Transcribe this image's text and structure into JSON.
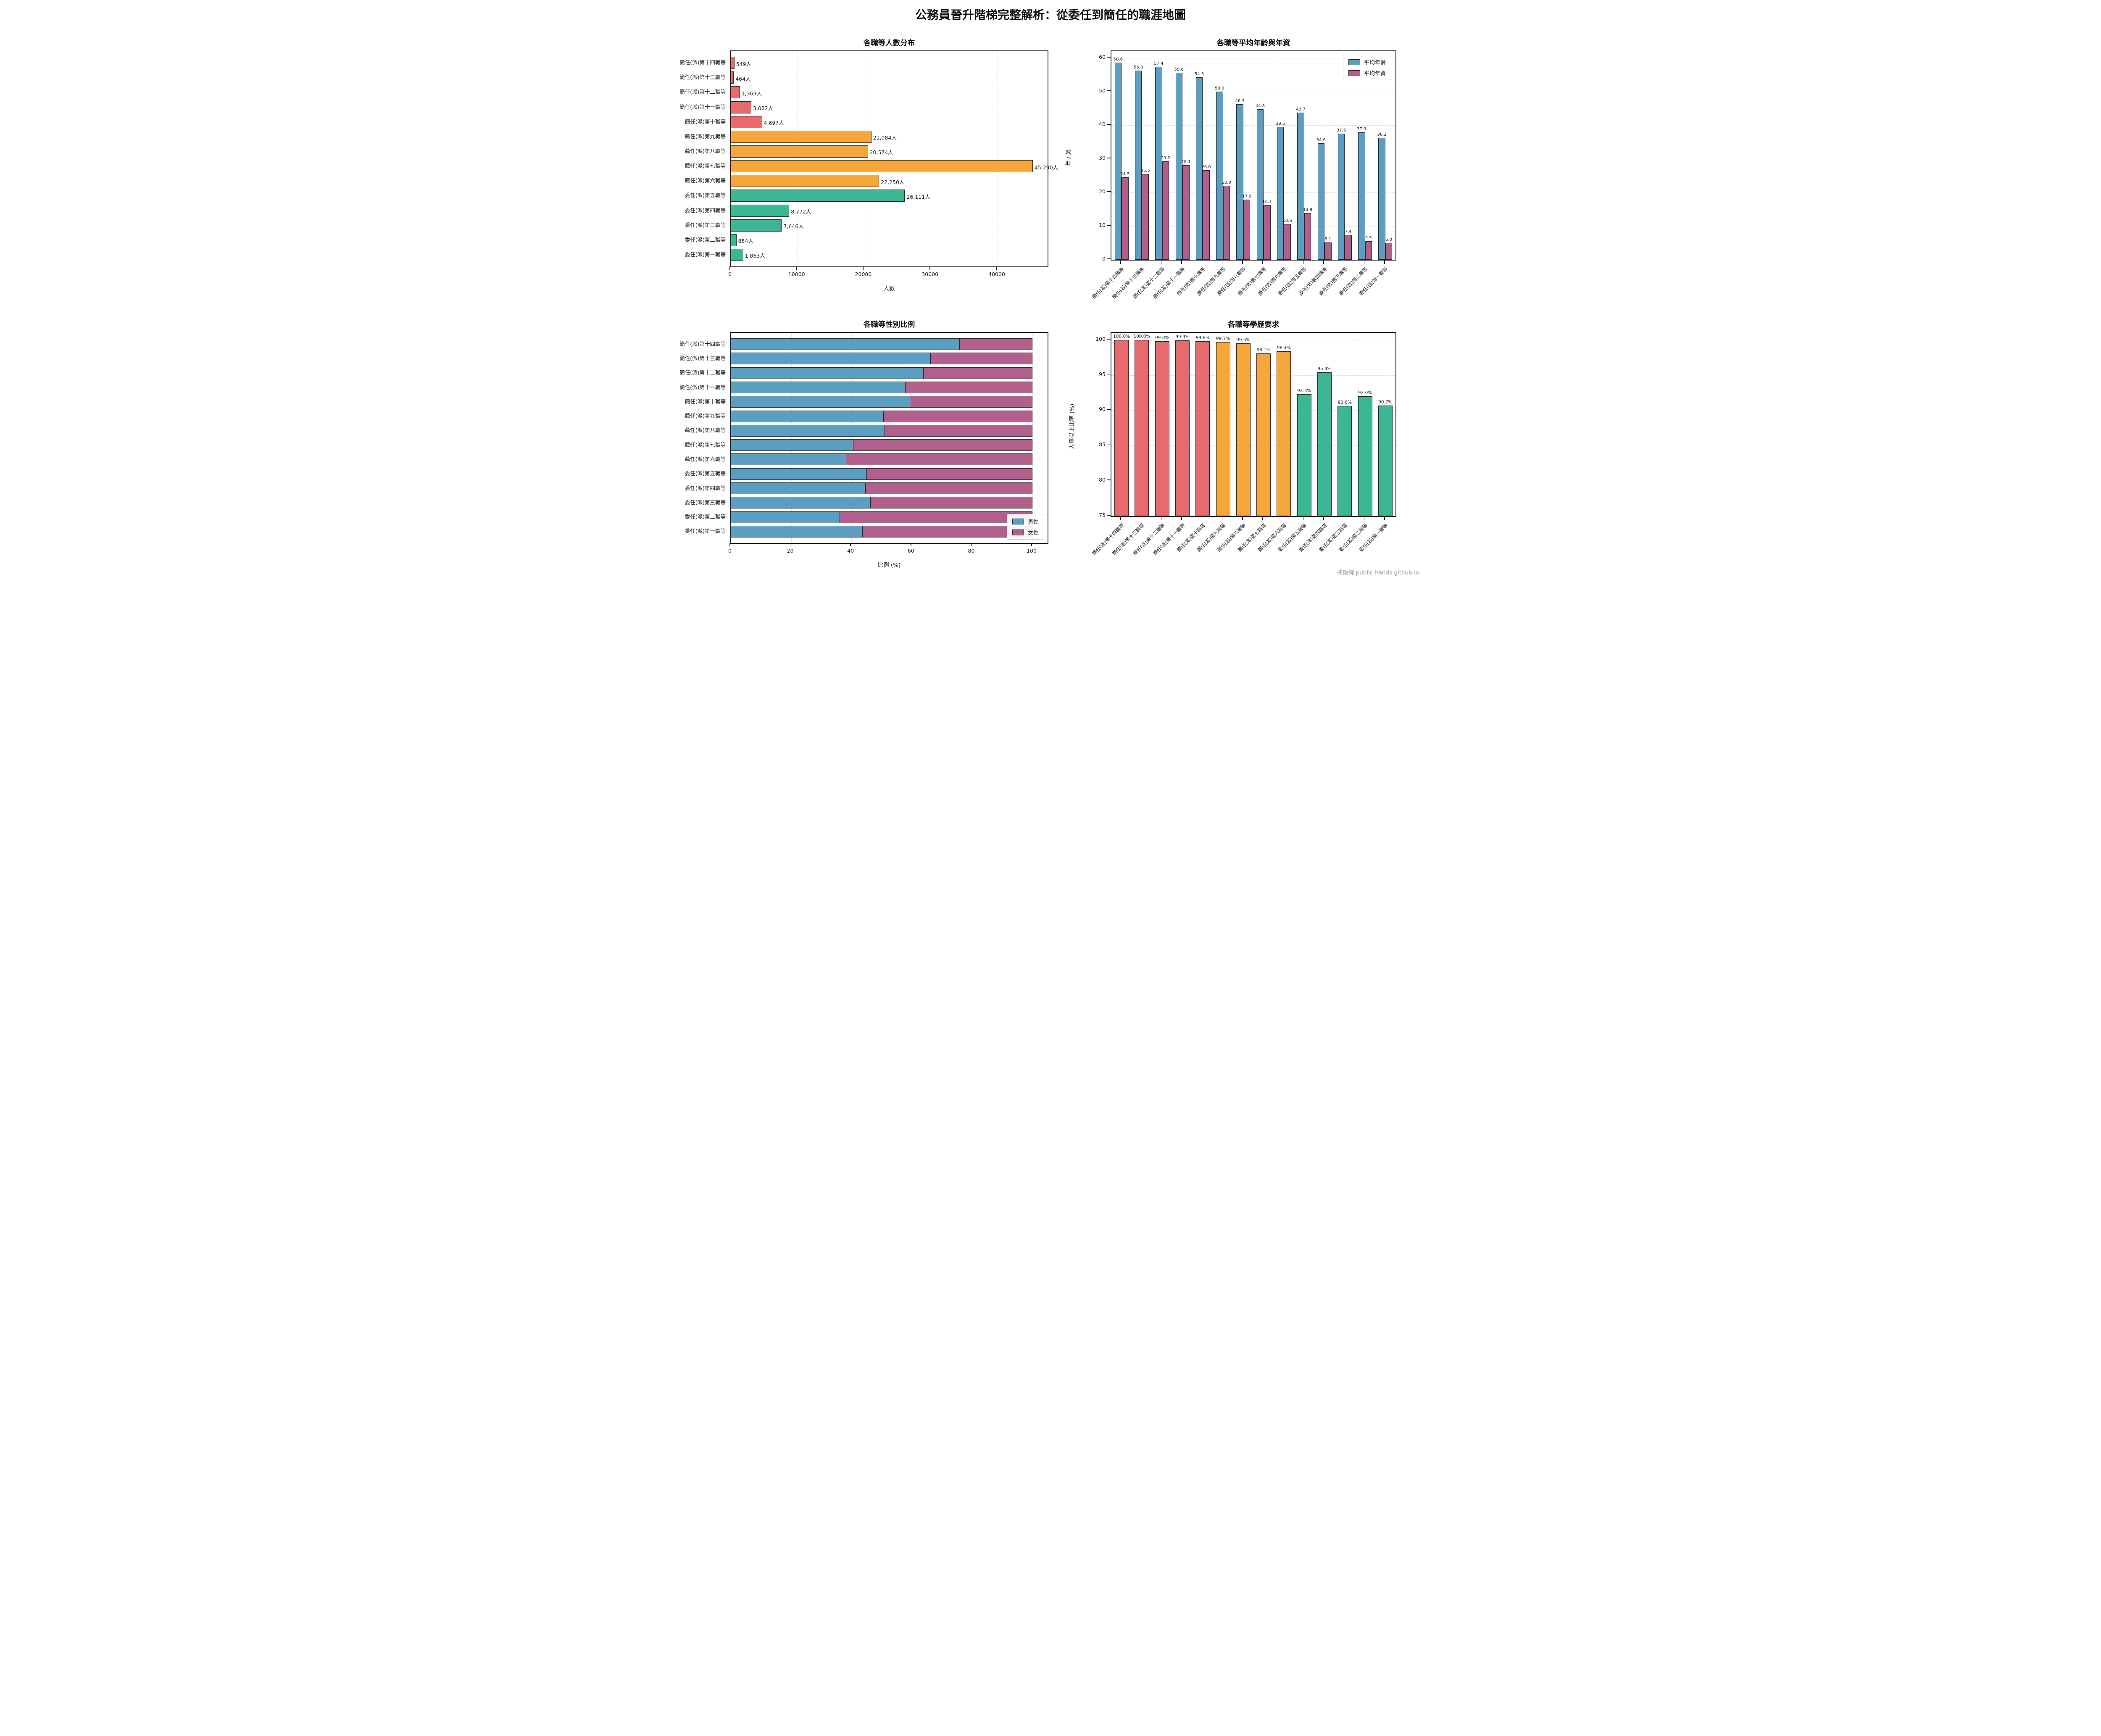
{
  "title": "公務員晉升階梯完整解析：從委任到簡任的職涯地圖",
  "watermark": "捧飯碗 public-hands.github.io",
  "palette": {
    "red": "#E76A6E",
    "orange": "#F5A73B",
    "green": "#3CB795",
    "blue": "#5B9EC1",
    "purple": "#B15F8D",
    "edge": "#262626",
    "grid": "#D8D8D8",
    "text": "#1A1A1A",
    "watermark_gray": "#9A9A9A"
  },
  "chart_data": [
    {
      "id": "count",
      "type": "bar",
      "orientation": "horizontal",
      "title": "各職等人數分布",
      "xlabel": "人數",
      "categories": [
        "簡任(派)第十四職等",
        "簡任(派)第十三職等",
        "簡任(派)第十二職等",
        "簡任(派)第十一職等",
        "簡任(派)第十職等",
        "薦任(派)第九職等",
        "薦任(派)第八職等",
        "薦任(派)第七職等",
        "薦任(派)第六職等",
        "委任(派)第五職等",
        "委任(派)第四職等",
        "委任(派)第三職等",
        "委任(派)第二職等",
        "委任(派)第一職等"
      ],
      "values": [
        549,
        464,
        1369,
        3082,
        4697,
        21084,
        20574,
        45290,
        22250,
        26111,
        8772,
        7646,
        854,
        1863
      ],
      "value_labels": [
        "549人",
        "464人",
        "1,369人",
        "3,082人",
        "4,697人",
        "21,084人",
        "20,574人",
        "45,290人",
        "22,250人",
        "26,111人",
        "8,772人",
        "7,646人",
        "854人",
        "1,863人"
      ],
      "bar_color_keys": [
        "red",
        "red",
        "red",
        "red",
        "red",
        "orange",
        "orange",
        "orange",
        "orange",
        "green",
        "green",
        "green",
        "green",
        "green"
      ],
      "xticks": [
        0,
        10000,
        20000,
        30000,
        40000
      ],
      "xlim": [
        0,
        47500
      ],
      "grid": true
    },
    {
      "id": "age_tenure",
      "type": "bar",
      "grouped": true,
      "title": "各職等平均年齡與年資",
      "ylabel": "年 / 歲",
      "categories": [
        "簡任(派)第十四職等",
        "簡任(派)第十三職等",
        "簡任(派)第十二職等",
        "簡任(派)第十一職等",
        "簡任(派)第十職等",
        "薦任(派)第九職等",
        "薦任(派)第八職等",
        "薦任(派)第七職等",
        "薦任(派)第六職等",
        "委任(派)第五職等",
        "委任(派)第四職等",
        "委任(派)第三職等",
        "委任(派)第二職等",
        "委任(派)第一職等"
      ],
      "series": [
        {
          "name": "平均年齡",
          "color_key": "blue",
          "values": [
            58.6,
            56.3,
            57.4,
            55.6,
            54.3,
            50.0,
            46.3,
            44.8,
            39.5,
            43.7,
            34.6,
            37.5,
            37.9,
            36.2
          ],
          "value_labels": [
            "58.6",
            "56.3",
            "57.4",
            "55.6",
            "54.3",
            "50.0",
            "46.3",
            "44.8",
            "39.5",
            "43.7",
            "34.6",
            "37.5",
            "37.9",
            "36.2"
          ]
        },
        {
          "name": "平均年資",
          "color_key": "purple",
          "values": [
            24.5,
            25.5,
            29.2,
            28.1,
            26.6,
            22.0,
            17.9,
            16.3,
            10.6,
            13.9,
            5.1,
            7.4,
            5.5,
            5.0
          ],
          "value_labels": [
            "24.5",
            "25.5",
            "29.2",
            "28.1",
            "26.6",
            "22.0",
            "17.9",
            "16.3",
            "10.6",
            "13.9",
            "5.1",
            "7.4",
            "5.5",
            "5.0"
          ]
        }
      ],
      "yticks": [
        0,
        10,
        20,
        30,
        40,
        50,
        60
      ],
      "ylim": [
        0,
        62
      ],
      "legend_position": "upper-right",
      "grid": true
    },
    {
      "id": "gender",
      "type": "stacked-bar",
      "orientation": "horizontal",
      "title": "各職等性別比例",
      "xlabel": "比例 (%)",
      "categories": [
        "簡任(派)第十四職等",
        "簡任(派)第十三職等",
        "簡任(派)第十二職等",
        "簡任(派)第十一職等",
        "簡任(派)第十職等",
        "薦任(派)第九職等",
        "薦任(派)第八職等",
        "薦任(派)第七職等",
        "薦任(派)第六職等",
        "委任(派)第五職等",
        "委任(派)第四職等",
        "委任(派)第三職等",
        "委任(派)第二職等",
        "委任(派)第一職等"
      ],
      "series": [
        {
          "name": "男性",
          "color_key": "blue",
          "values": [
            75.9,
            66.3,
            64.0,
            58.0,
            59.5,
            50.7,
            51.2,
            40.8,
            38.3,
            45.2,
            44.8,
            46.5,
            36.3,
            43.8
          ]
        },
        {
          "name": "女性",
          "color_key": "purple",
          "values": [
            24.1,
            33.7,
            36.0,
            42.0,
            40.5,
            49.3,
            48.8,
            59.2,
            61.7,
            54.8,
            55.2,
            53.5,
            63.7,
            56.2
          ]
        }
      ],
      "xticks": [
        0,
        20,
        40,
        60,
        80,
        100
      ],
      "xlim": [
        0,
        105
      ],
      "legend_position": "lower-right",
      "grid": true
    },
    {
      "id": "education",
      "type": "bar",
      "title": "各職等學歷要求",
      "ylabel": "大專以上比率 (%)",
      "categories": [
        "簡任(派)第十四職等",
        "簡任(派)第十三職等",
        "簡任(派)第十二職等",
        "簡任(派)第十一職等",
        "簡任(派)第十職等",
        "薦任(派)第九職等",
        "薦任(派)第八職等",
        "薦任(派)第七職等",
        "薦任(派)第六職等",
        "委任(派)第五職等",
        "委任(派)第四職等",
        "委任(派)第三職等",
        "委任(派)第二職等",
        "委任(派)第一職等"
      ],
      "values": [
        100.0,
        100.0,
        99.8,
        99.9,
        99.8,
        99.7,
        99.5,
        98.1,
        98.4,
        92.3,
        95.4,
        90.6,
        92.0,
        90.7
      ],
      "value_labels": [
        "100.0%",
        "100.0%",
        "99.8%",
        "99.9%",
        "99.8%",
        "99.7%",
        "99.5%",
        "98.1%",
        "98.4%",
        "92.3%",
        "95.4%",
        "90.6%",
        "92.0%",
        "90.7%"
      ],
      "bar_color_keys": [
        "red",
        "red",
        "red",
        "red",
        "red",
        "orange",
        "orange",
        "orange",
        "orange",
        "green",
        "green",
        "green",
        "green",
        "green"
      ],
      "yticks": [
        75,
        80,
        85,
        90,
        95,
        100
      ],
      "ylim": [
        75,
        101
      ],
      "grid": true
    }
  ]
}
